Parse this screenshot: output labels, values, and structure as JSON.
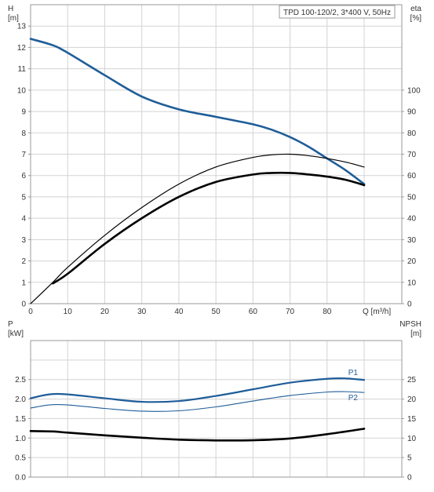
{
  "chart_data": [
    {
      "type": "line",
      "panel": "head-efficiency",
      "title": "TPD 100-120/2, 3*400 V, 50Hz",
      "left_axis": {
        "label": "H",
        "unit": "[m]",
        "range": [
          0,
          14
        ],
        "ticks": [
          0,
          1,
          2,
          3,
          4,
          5,
          6,
          7,
          8,
          9,
          10,
          11,
          12,
          13
        ]
      },
      "right_axis": {
        "label": "eta",
        "unit": "[%]",
        "range": [
          0,
          140
        ],
        "ticks": [
          0,
          10,
          20,
          30,
          40,
          50,
          60,
          70,
          80,
          90,
          100
        ]
      },
      "x_axis": {
        "label": "Q [m³/h]",
        "range": [
          0,
          90
        ],
        "ticks": [
          0,
          10,
          20,
          30,
          40,
          50,
          60,
          70,
          80
        ],
        "end_label": "Q [m³/h]"
      },
      "grid": true,
      "series": [
        {
          "axis": "left",
          "color": "#1f5d99",
          "x": [
            0,
            6,
            10,
            20,
            30,
            40,
            50,
            60,
            65,
            70,
            75,
            80,
            85,
            90
          ],
          "y": [
            12.4,
            12.1,
            11.75,
            10.7,
            9.7,
            9.1,
            8.75,
            8.4,
            8.15,
            7.8,
            7.35,
            6.8,
            6.25,
            5.6
          ]
        },
        {
          "axis": "right",
          "color": "#000000",
          "x": [
            0,
            6,
            10,
            20,
            30,
            40,
            50,
            60,
            65,
            70,
            75,
            80,
            85,
            90
          ],
          "y": [
            0,
            10,
            17,
            32,
            45,
            56,
            64,
            68.5,
            69.7,
            70,
            69.3,
            68,
            66.3,
            64
          ]
        },
        {
          "axis": "right",
          "color": "#000000",
          "x": [
            6,
            10,
            20,
            30,
            40,
            50,
            60,
            65,
            70,
            75,
            80,
            85,
            90
          ],
          "y": [
            9.5,
            14,
            28,
            40,
            50,
            57,
            60.5,
            61.2,
            61.2,
            60.5,
            59.5,
            58,
            55.5
          ]
        }
      ]
    },
    {
      "type": "line",
      "panel": "power-npsh",
      "left_axis": {
        "label": "P",
        "unit": "[kW]",
        "range": [
          0,
          3.5
        ],
        "ticks": [
          0.0,
          0.5,
          1.0,
          1.5,
          2.0,
          2.5
        ]
      },
      "right_axis": {
        "label": "NPSH",
        "unit": "[m]",
        "range": [
          0,
          35
        ],
        "ticks": [
          0,
          5,
          10,
          15,
          20,
          25
        ]
      },
      "x_axis": {
        "range": [
          0,
          90
        ]
      },
      "grid": true,
      "series": [
        {
          "name": "P1",
          "axis": "left",
          "color": "#1f5d99",
          "x": [
            0,
            5,
            10,
            20,
            30,
            40,
            50,
            60,
            70,
            80,
            85,
            90
          ],
          "y": [
            2.02,
            2.12,
            2.12,
            2.02,
            1.93,
            1.95,
            2.08,
            2.25,
            2.42,
            2.52,
            2.53,
            2.49
          ]
        },
        {
          "name": "P2",
          "axis": "left",
          "color": "#1f5d99",
          "x": [
            0,
            5,
            10,
            20,
            30,
            40,
            50,
            60,
            70,
            80,
            85,
            90
          ],
          "y": [
            1.77,
            1.85,
            1.85,
            1.76,
            1.69,
            1.7,
            1.8,
            1.95,
            2.09,
            2.18,
            2.19,
            2.17
          ]
        },
        {
          "axis": "right",
          "color": "#000000",
          "x": [
            0,
            6,
            10,
            20,
            30,
            40,
            50,
            60,
            70,
            80,
            90
          ],
          "y": [
            11.8,
            11.7,
            11.4,
            10.7,
            10.1,
            9.6,
            9.4,
            9.45,
            9.9,
            11,
            12.4
          ]
        }
      ]
    }
  ]
}
